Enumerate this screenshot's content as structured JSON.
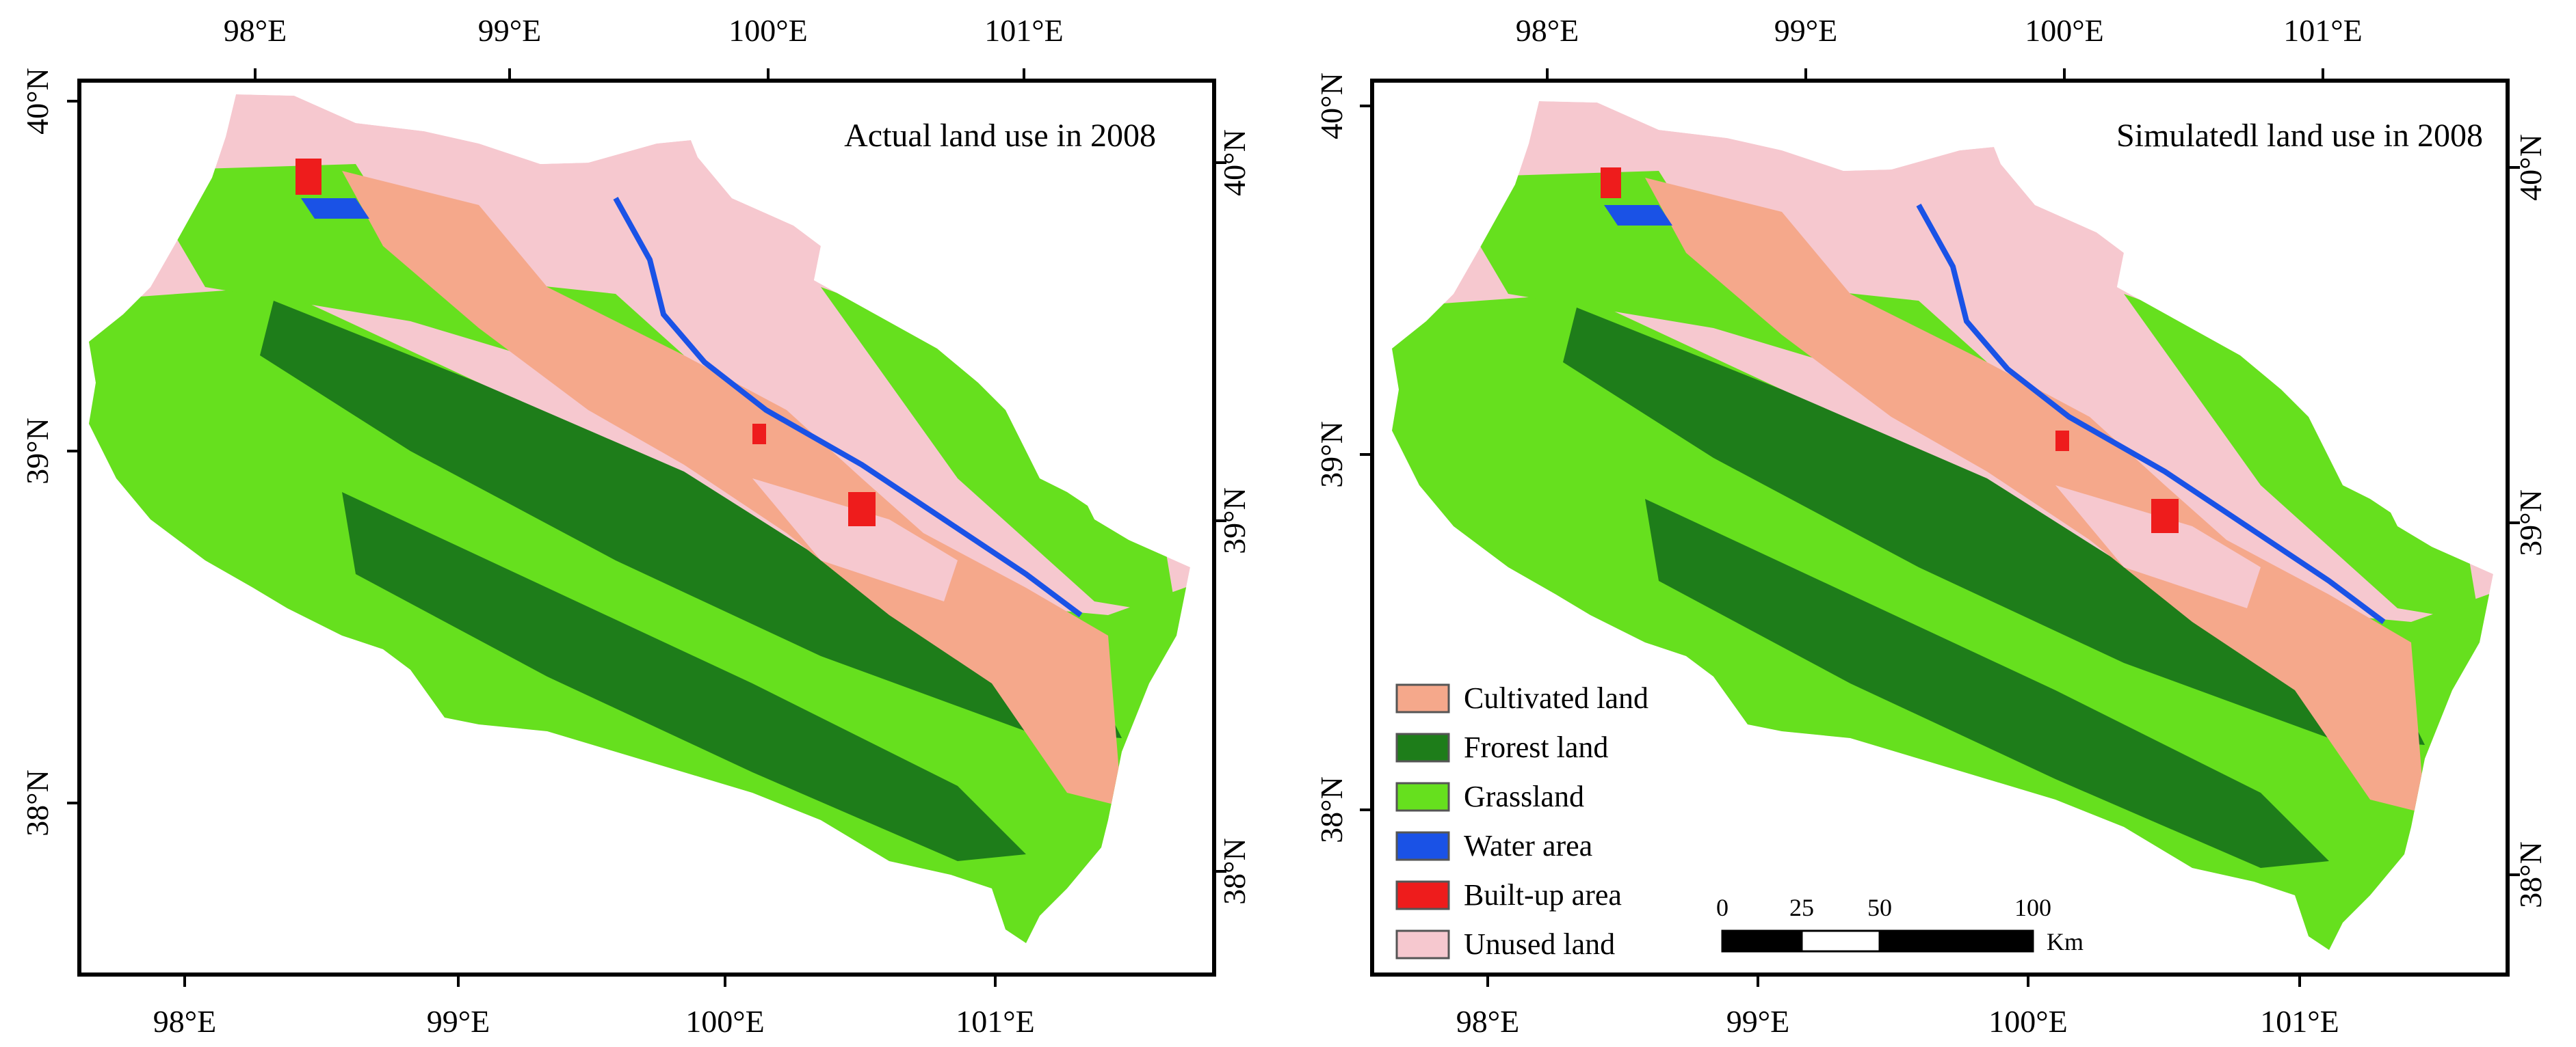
{
  "colors": {
    "cultivated": "#f5a88b",
    "forest": "#1e7d1a",
    "grassland": "#66e01e",
    "water": "#1a52e6",
    "builtup": "#ee1c1c",
    "unused": "#f6c8cf"
  },
  "panels": [
    {
      "title": "Actual land use in 2008",
      "top_lon_labels": [
        "98°E",
        "99°E",
        "100°E",
        "101°E"
      ],
      "bottom_lon_labels": [
        "98°E",
        "99°E",
        "100°E",
        "101°E"
      ],
      "left_lat_labels": [
        "40°N",
        "39°N",
        "38°N"
      ],
      "right_lat_labels": [
        "40°N",
        "39°N",
        "38°N"
      ]
    },
    {
      "title": "Simulatedl land use in 2008",
      "top_lon_labels": [
        "98°E",
        "99°E",
        "100°E",
        "101°E"
      ],
      "bottom_lon_labels": [
        "98°E",
        "99°E",
        "100°E",
        "101°E"
      ],
      "left_lat_labels": [
        "40°N",
        "39°N",
        "38°N"
      ],
      "right_lat_labels": [
        "40°N",
        "39°N",
        "38°N"
      ]
    }
  ],
  "legend": {
    "items": [
      {
        "label": "Cultivated land",
        "color_key": "cultivated"
      },
      {
        "label": "Frorest land",
        "color_key": "forest"
      },
      {
        "label": "Grassland",
        "color_key": "grassland"
      },
      {
        "label": "Water area",
        "color_key": "water"
      },
      {
        "label": "Built-up area",
        "color_key": "builtup"
      },
      {
        "label": "Unused land",
        "color_key": "unused"
      }
    ]
  },
  "scale_bar": {
    "ticks": [
      "0",
      "25",
      "50",
      "100"
    ],
    "unit": "Km"
  }
}
